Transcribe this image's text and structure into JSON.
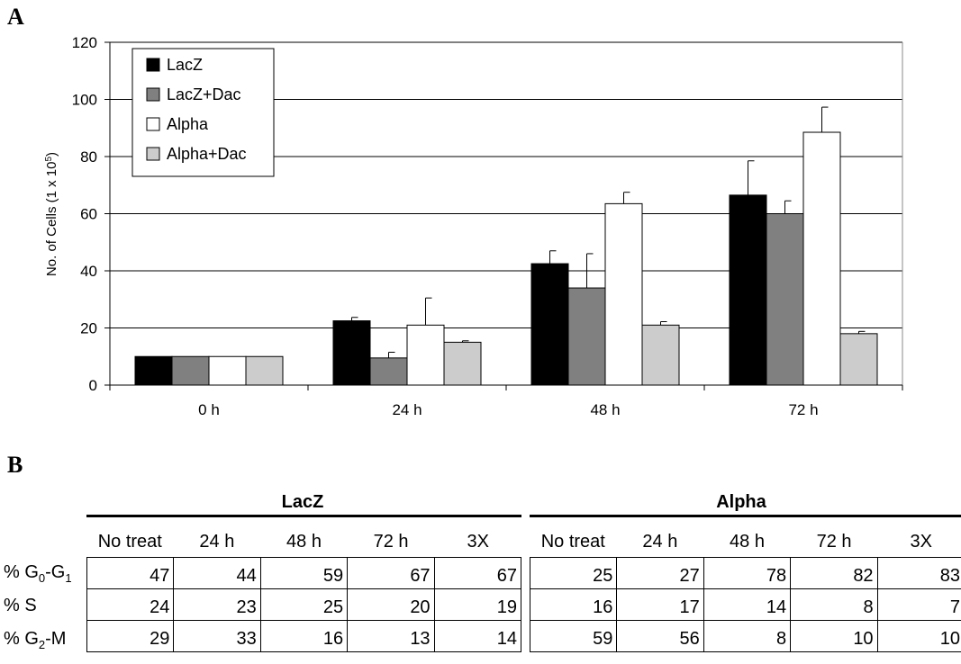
{
  "panel_a_label": "A",
  "panel_b_label": "B",
  "chart_data": {
    "type": "bar",
    "ylabel": "No. of Cells (1 x 10",
    "ylabel_exp": "5",
    "ylabel_end": ")",
    "ylim": [
      0,
      120
    ],
    "yticks": [
      0,
      20,
      40,
      60,
      80,
      100,
      120
    ],
    "grid": true,
    "legend_position": "top-left",
    "categories": [
      "0 h",
      "24 h",
      "48 h",
      "72 h"
    ],
    "series": [
      {
        "name": "LacZ",
        "color": "#000000",
        "values": [
          10,
          22.5,
          42.5,
          66.5
        ],
        "errors": [
          0,
          1.2,
          4.5,
          12
        ]
      },
      {
        "name": "LacZ+Dac",
        "color": "#808080",
        "values": [
          10,
          9.5,
          34,
          60
        ],
        "errors": [
          0,
          2,
          12,
          4.5
        ]
      },
      {
        "name": "Alpha",
        "color": "#ffffff",
        "values": [
          10,
          21,
          63.5,
          88.5
        ],
        "errors": [
          0,
          9.5,
          4,
          8.8
        ]
      },
      {
        "name": "Alpha+Dac",
        "color": "#cccccc",
        "values": [
          10,
          15,
          21,
          18
        ],
        "errors": [
          0,
          0.5,
          1.2,
          0.8
        ]
      }
    ]
  },
  "table": {
    "groups": [
      {
        "title": "LacZ",
        "columns": [
          "No treat",
          "24 h",
          "48 h",
          "72 h",
          "3X"
        ],
        "rows": [
          [
            "47",
            "44",
            "59",
            "67",
            "67"
          ],
          [
            "24",
            "23",
            "25",
            "20",
            "19"
          ],
          [
            "29",
            "33",
            "16",
            "13",
            "14"
          ]
        ]
      },
      {
        "title": "Alpha",
        "columns": [
          "No treat",
          "24 h",
          "48 h",
          "72 h",
          "3X"
        ],
        "rows": [
          [
            "25",
            "27",
            "78",
            "82",
            "83"
          ],
          [
            "16",
            "17",
            "14",
            "8",
            "7"
          ],
          [
            "59",
            "56",
            "8",
            "10",
            "10"
          ]
        ]
      }
    ],
    "row_labels": [
      {
        "prefix": "% G",
        "sub1": "0",
        "mid": "-G",
        "sub2": "1"
      },
      {
        "prefix": "% S",
        "sub1": "",
        "mid": "",
        "sub2": ""
      },
      {
        "prefix": "% G",
        "sub1": "2",
        "mid": "-M",
        "sub2": ""
      }
    ]
  }
}
